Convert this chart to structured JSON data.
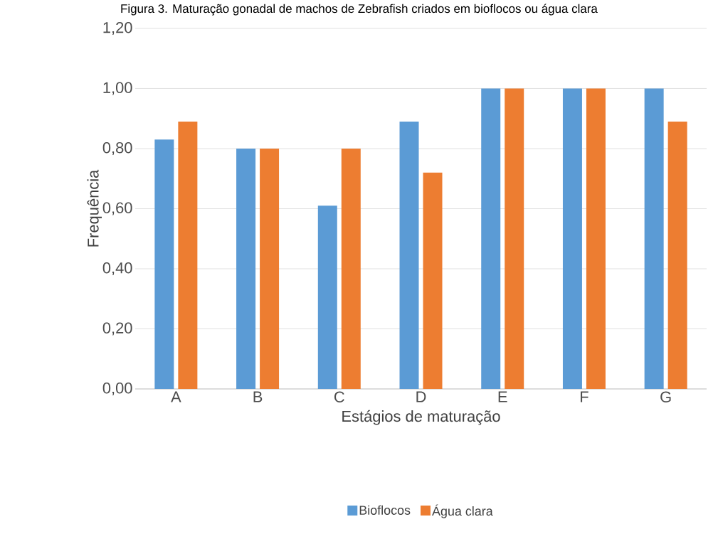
{
  "chart_data": {
    "type": "bar",
    "title": "Figura 3. Maturação gonadal de machos de Zebrafish criados em bioflocos ou água clara",
    "xlabel": "Estágios de maturação",
    "ylabel": "Frequência",
    "categories": [
      "A",
      "B",
      "C",
      "D",
      "E",
      "F",
      "G"
    ],
    "series": [
      {
        "name": "Bioflocos",
        "color": "#5b9bd5",
        "values": [
          0.83,
          0.8,
          0.61,
          0.89,
          1.0,
          1.0,
          1.0
        ]
      },
      {
        "name": "Água clara",
        "color": "#ed7d31",
        "values": [
          0.89,
          0.8,
          0.8,
          0.72,
          1.0,
          1.0,
          0.89
        ]
      }
    ],
    "ylim": [
      0,
      1.2
    ],
    "yticks": [
      {
        "value": 0,
        "label": "0,00"
      },
      {
        "value": 0.2,
        "label": "0,20"
      },
      {
        "value": 0.4,
        "label": "0,40"
      },
      {
        "value": 0.6,
        "label": "0,60"
      },
      {
        "value": 0.8,
        "label": "0,80"
      },
      {
        "value": 1.0,
        "label": "1,00"
      },
      {
        "value": 1.2,
        "label": "1,20"
      }
    ],
    "grid": "y",
    "legend": "bottom"
  }
}
